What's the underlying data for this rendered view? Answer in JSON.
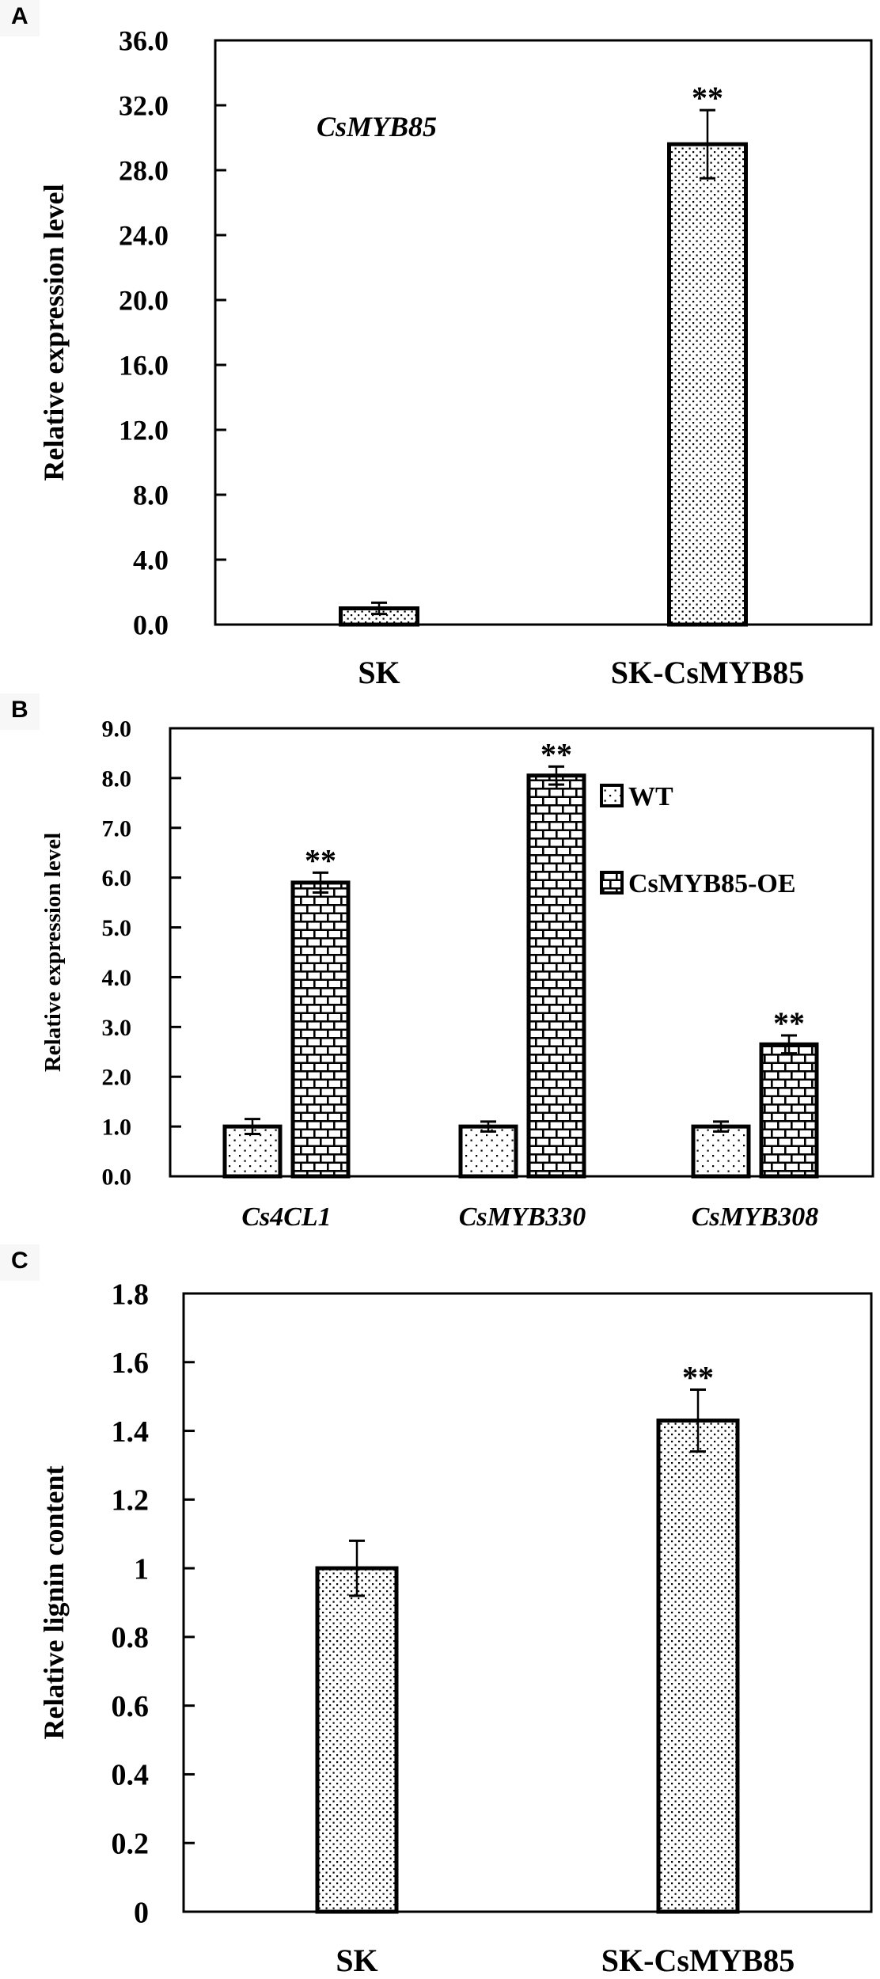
{
  "panels": [
    {
      "letter": "A"
    },
    {
      "letter": "B"
    },
    {
      "letter": "C"
    }
  ],
  "chart_data": [
    {
      "panel": "A",
      "type": "bar",
      "title": "",
      "annotation": "CsMYB85",
      "xlabel": "",
      "ylabel": "Relative expression level",
      "ylim": [
        0,
        36
      ],
      "yticks": [
        "0.0",
        "4.0",
        "8.0",
        "12.0",
        "16.0",
        "20.0",
        "24.0",
        "28.0",
        "32.0",
        "36.0"
      ],
      "categories": [
        "SK",
        "SK-CsMYB85"
      ],
      "values": [
        1.0,
        29.6
      ],
      "errors": [
        0.35,
        2.1
      ],
      "significance": [
        "",
        "**"
      ],
      "pattern": "dots",
      "grid": false,
      "legend": null
    },
    {
      "panel": "B",
      "type": "bar",
      "title": "",
      "xlabel": "",
      "ylabel": "Relative expression level",
      "ylim": [
        0,
        9
      ],
      "yticks": [
        "0.0",
        "1.0",
        "2.0",
        "3.0",
        "4.0",
        "5.0",
        "6.0",
        "7.0",
        "8.0",
        "9.0"
      ],
      "categories": [
        "Cs4CL1",
        "CsMYB330",
        "CsMYB308"
      ],
      "series": [
        {
          "name": "WT",
          "pattern": "sparse-dots",
          "values": [
            1.0,
            1.0,
            1.0
          ],
          "errors": [
            0.15,
            0.1,
            0.1
          ],
          "significance": [
            "",
            "",
            ""
          ]
        },
        {
          "name": "CsMYB85-OE",
          "pattern": "bricks",
          "values": [
            5.9,
            8.05,
            2.65
          ],
          "errors": [
            0.2,
            0.18,
            0.18
          ],
          "significance": [
            "**",
            "**",
            "**"
          ]
        }
      ],
      "grid": false,
      "legend": {
        "position": "upper-right-inside",
        "entries": [
          "WT",
          "CsMYB85-OE"
        ]
      }
    },
    {
      "panel": "C",
      "type": "bar",
      "title": "",
      "xlabel": "",
      "ylabel": "Relative lignin  content",
      "ylim": [
        0,
        1.8
      ],
      "yticks": [
        "0",
        "0.2",
        "0.4",
        "0.6",
        "0.8",
        "1",
        "1.2",
        "1.4",
        "1.6",
        "1.8"
      ],
      "categories": [
        "SK",
        "SK-CsMYB85"
      ],
      "values": [
        1.0,
        1.43
      ],
      "errors": [
        0.08,
        0.09
      ],
      "significance": [
        "",
        "**"
      ],
      "pattern": "dots",
      "grid": false,
      "legend": null
    }
  ]
}
